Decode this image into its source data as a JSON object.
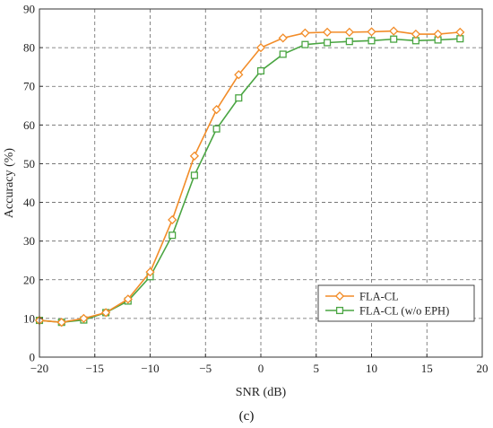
{
  "chart_data": {
    "type": "line",
    "title": "",
    "xlabel": "SNR (dB)",
    "ylabel": "Accuracy (%)",
    "xlim": [
      -20,
      20
    ],
    "ylim": [
      0,
      90
    ],
    "xticks": [
      -20,
      -15,
      -10,
      -5,
      0,
      5,
      10,
      15,
      20
    ],
    "yticks": [
      0,
      10,
      20,
      30,
      40,
      50,
      60,
      70,
      80,
      90
    ],
    "grid": true,
    "legend_position": "bottom-right",
    "panel_label": "(c)",
    "x": [
      -20,
      -18,
      -16,
      -14,
      -12,
      -10,
      -8,
      -6,
      -4,
      -2,
      0,
      2,
      4,
      6,
      8,
      10,
      12,
      14,
      16,
      18
    ],
    "series": [
      {
        "name": "FLA-CL",
        "color": "#f28c28",
        "marker": "diamond",
        "values": [
          9.5,
          9.0,
          10.0,
          11.5,
          15.0,
          22.0,
          35.5,
          52.0,
          64.0,
          73.0,
          80.0,
          82.5,
          83.8,
          84.0,
          84.0,
          84.1,
          84.3,
          83.5,
          83.5,
          84.0
        ]
      },
      {
        "name": "FLA-CL (w/o EPH)",
        "color": "#4aa542",
        "marker": "square",
        "values": [
          9.5,
          9.0,
          9.6,
          11.5,
          14.5,
          20.8,
          31.5,
          47.0,
          59.0,
          67.0,
          74.0,
          78.3,
          80.8,
          81.3,
          81.6,
          81.8,
          82.2,
          81.8,
          82.0,
          82.3
        ]
      }
    ]
  }
}
